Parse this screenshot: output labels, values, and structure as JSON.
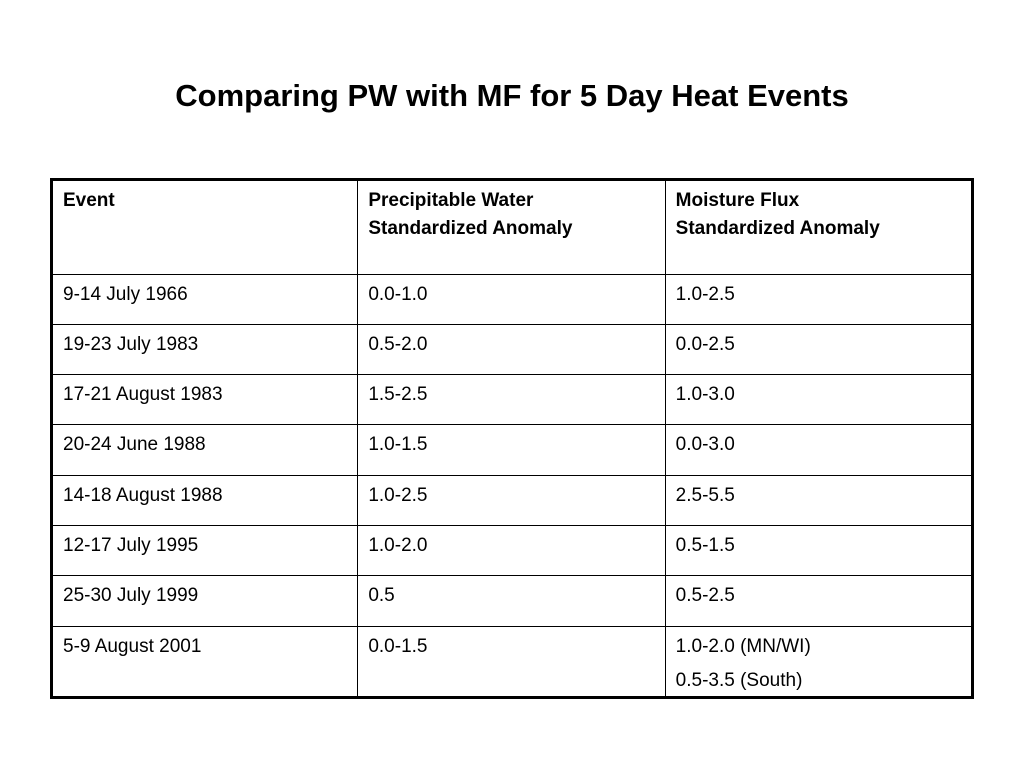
{
  "title": "Comparing PW with MF for 5 Day Heat Events",
  "table": {
    "headers": [
      {
        "line1": "Event",
        "line2": ""
      },
      {
        "line1": "Precipitable Water",
        "line2": "Standardized Anomaly"
      },
      {
        "line1": "Moisture Flux",
        "line2": "Standardized Anomaly"
      }
    ],
    "rows": [
      {
        "event": "9-14 July 1966",
        "pw": "0.0-1.0",
        "mf": "1.0-2.5"
      },
      {
        "event": "19-23 July 1983",
        "pw": "0.5-2.0",
        "mf": "0.0-2.5"
      },
      {
        "event": "17-21 August 1983",
        "pw": "1.5-2.5",
        "mf": "1.0-3.0"
      },
      {
        "event": "20-24 June 1988",
        "pw": "1.0-1.5",
        "mf": "0.0-3.0"
      },
      {
        "event": "14-18 August 1988",
        "pw": "1.0-2.5",
        "mf": "2.5-5.5"
      },
      {
        "event": "12-17 July 1995",
        "pw": "1.0-2.0",
        "mf": "0.5-1.5"
      },
      {
        "event": "25-30 July 1999",
        "pw": "0.5",
        "mf": "0.5-2.5"
      }
    ],
    "last_row": {
      "event": "5-9 August 2001",
      "pw": "0.0-1.5",
      "mf_line1": "1.0-2.0 (MN/WI)",
      "mf_line2": "0.5-3.5 (South)"
    }
  }
}
